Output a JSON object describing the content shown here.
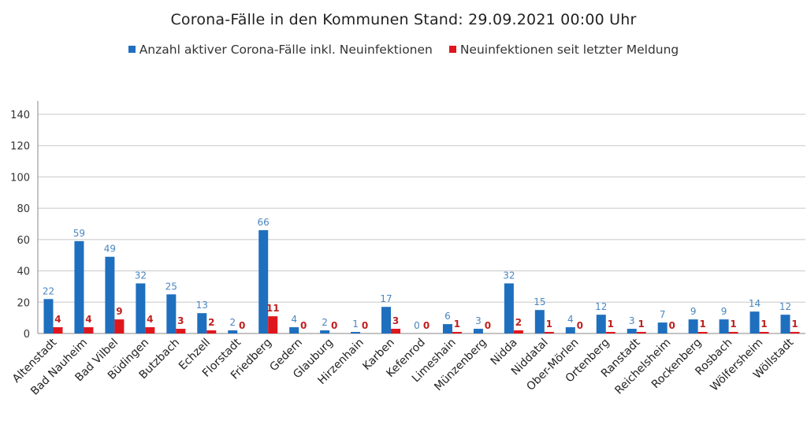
{
  "chart_data": {
    "type": "bar",
    "title": "Corona-Fälle in den Kommunen Stand: 29.09.2021 00:00 Uhr",
    "categories": [
      "Altenstadt",
      "Bad Nauheim",
      "Bad Vilbel",
      "Büdingen",
      "Butzbach",
      "Echzell",
      "Florstadt",
      "Friedberg",
      "Gedern",
      "Glauburg",
      "Hirzenhain",
      "Karben",
      "Kefenrod",
      "Limeshain",
      "Münzenberg",
      "Nidda",
      "Niddatal",
      "Ober-Mörlen",
      "Ortenberg",
      "Ranstadt",
      "Reichelsheim",
      "Rockenberg",
      "Rosbach",
      "Wölfersheim",
      "Wöllstadt"
    ],
    "series": [
      {
        "name": "Anzahl aktiver Corona-Fälle inkl. Neuinfektionen",
        "color": "#1f6fbf",
        "label_color": "#4a86c0",
        "values": [
          22,
          59,
          49,
          32,
          25,
          13,
          2,
          66,
          4,
          2,
          1,
          17,
          0,
          6,
          3,
          32,
          15,
          4,
          12,
          3,
          7,
          9,
          9,
          14,
          12
        ]
      },
      {
        "name": "Neuinfektionen seit letzter Meldung",
        "color": "#e0161d",
        "label_color": "#c0201e",
        "values": [
          4,
          4,
          9,
          4,
          3,
          2,
          0,
          11,
          0,
          0,
          0,
          3,
          0,
          1,
          0,
          2,
          1,
          0,
          1,
          1,
          0,
          1,
          1,
          1,
          1
        ]
      }
    ],
    "ylim": [
      0,
      140
    ],
    "yticks": [
      0,
      20,
      40,
      60,
      80,
      100,
      120,
      140
    ],
    "grid": true,
    "legend": "top",
    "xlabel": "",
    "ylabel": ""
  }
}
